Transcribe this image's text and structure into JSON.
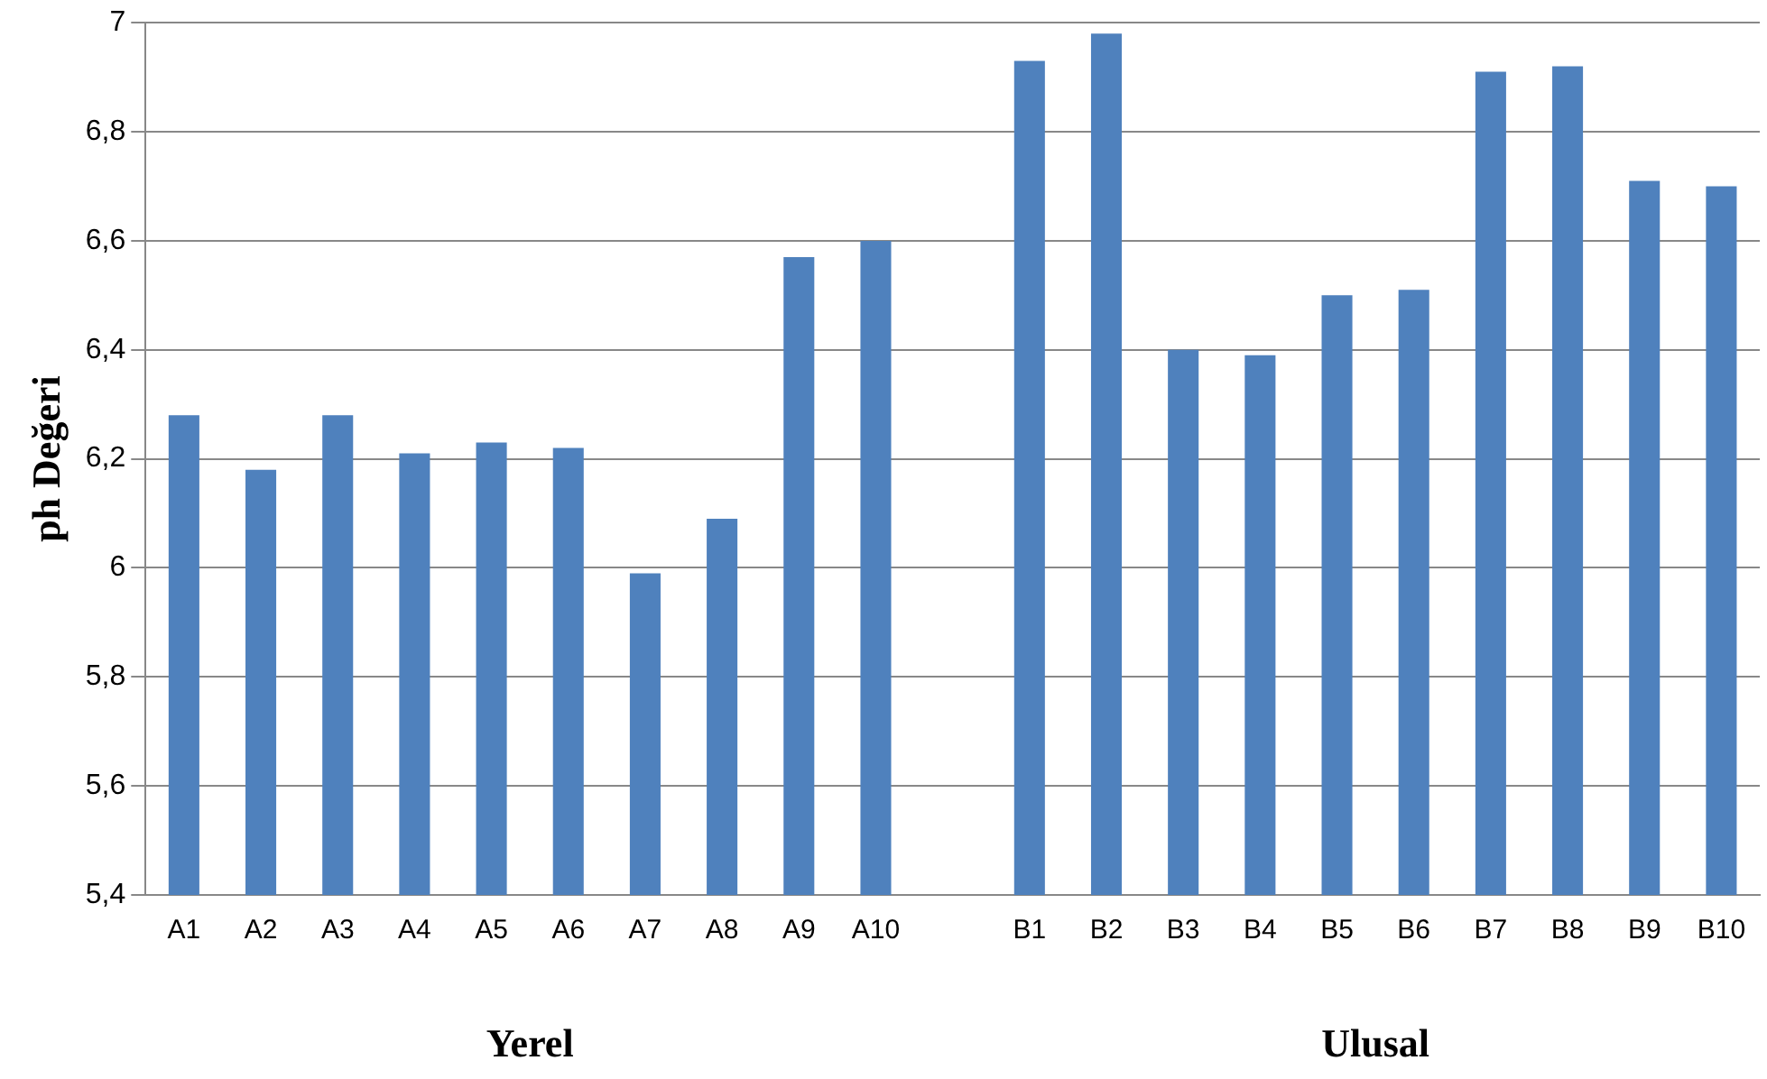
{
  "chart_data": {
    "type": "bar",
    "ylabel": "ph Değeri",
    "categories": [
      "A1",
      "A2",
      "A3",
      "A4",
      "A5",
      "A6",
      "A7",
      "A8",
      "A9",
      "A10",
      null,
      "B1",
      "B2",
      "B3",
      "B4",
      "B5",
      "B6",
      "B7",
      "B8",
      "B9",
      "B10"
    ],
    "values": [
      6.28,
      6.18,
      6.28,
      6.21,
      6.23,
      6.22,
      5.99,
      6.09,
      6.57,
      6.6,
      null,
      6.93,
      6.98,
      6.4,
      6.39,
      6.5,
      6.51,
      6.91,
      6.92,
      6.71,
      6.7
    ],
    "color": "#4f81bd",
    "ylim": [
      5.4,
      7
    ],
    "yticks": [
      {
        "value": 5.4,
        "label": "5,4"
      },
      {
        "value": 5.6,
        "label": "5,6"
      },
      {
        "value": 5.8,
        "label": "5,8"
      },
      6,
      {
        "value": 6.2,
        "label": "6,2"
      },
      {
        "value": 6.4,
        "label": "6,4"
      },
      {
        "value": 6.6,
        "label": "6,6"
      },
      {
        "value": 6.8,
        "label": "6,8"
      },
      7
    ],
    "grid": "y",
    "annotations": [
      "Yerel",
      "Ulusal"
    ]
  }
}
